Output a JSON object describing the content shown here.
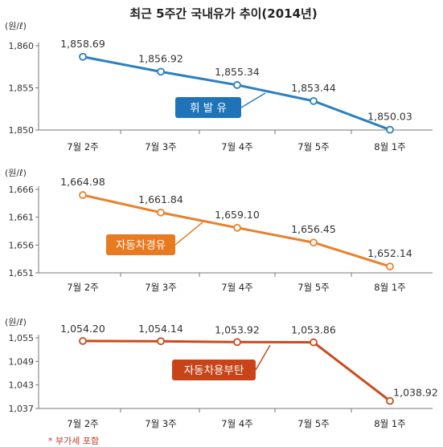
{
  "title": "최근 5주간 국내유가 추이(2014년)",
  "footnote": "* 부가세 포함",
  "chart_data": [
    {
      "type": "line",
      "unit": "(원/ℓ)",
      "categories": [
        "7월 2주",
        "7월 3주",
        "7월 4주",
        "7월 5주",
        "8월 1주"
      ],
      "series": [
        {
          "name": "휘 발 유",
          "values": [
            1858.69,
            1856.92,
            1855.34,
            1853.44,
            1850.03
          ],
          "labels": [
            "1,858.69",
            "1,856.92",
            "1,855.34",
            "1,853.44",
            "1,850.03"
          ]
        }
      ],
      "yticks": [
        "1,860",
        "1,855",
        "1,850"
      ],
      "ylim": [
        1850,
        1860
      ],
      "color": "#2a7fc4",
      "legend_color": "#1f73b8"
    },
    {
      "type": "line",
      "unit": "(원/ℓ)",
      "categories": [
        "7월 2주",
        "7월 3주",
        "7월 4주",
        "7월 5주",
        "8월 1주"
      ],
      "series": [
        {
          "name": "자동차경유",
          "values": [
            1664.98,
            1661.84,
            1659.1,
            1656.45,
            1652.14
          ],
          "labels": [
            "1,664.98",
            "1,661.84",
            "1,659.10",
            "1,656.45",
            "1,652.14"
          ]
        }
      ],
      "yticks": [
        "1,666",
        "1,661",
        "1,656",
        "1,651"
      ],
      "ylim": [
        1651,
        1666
      ],
      "color": "#e8812a",
      "legend_color": "#e87a20"
    },
    {
      "type": "line",
      "unit": "(원/ℓ)",
      "categories": [
        "7월 2주",
        "7월 3주",
        "7월 4주",
        "7월 5주",
        "8월 1주"
      ],
      "series": [
        {
          "name": "자동차용부탄",
          "values": [
            1054.2,
            1054.14,
            1053.92,
            1053.86,
            1038.92
          ],
          "labels": [
            "1,054.20",
            "1,054.14",
            "1,053.92",
            "1,053.86",
            "1,038.92"
          ]
        }
      ],
      "yticks": [
        "1,055",
        "1,049",
        "1,043",
        "1,037"
      ],
      "ylim": [
        1037,
        1055
      ],
      "color": "#cc4a1c",
      "legend_color": "#c84418"
    }
  ]
}
